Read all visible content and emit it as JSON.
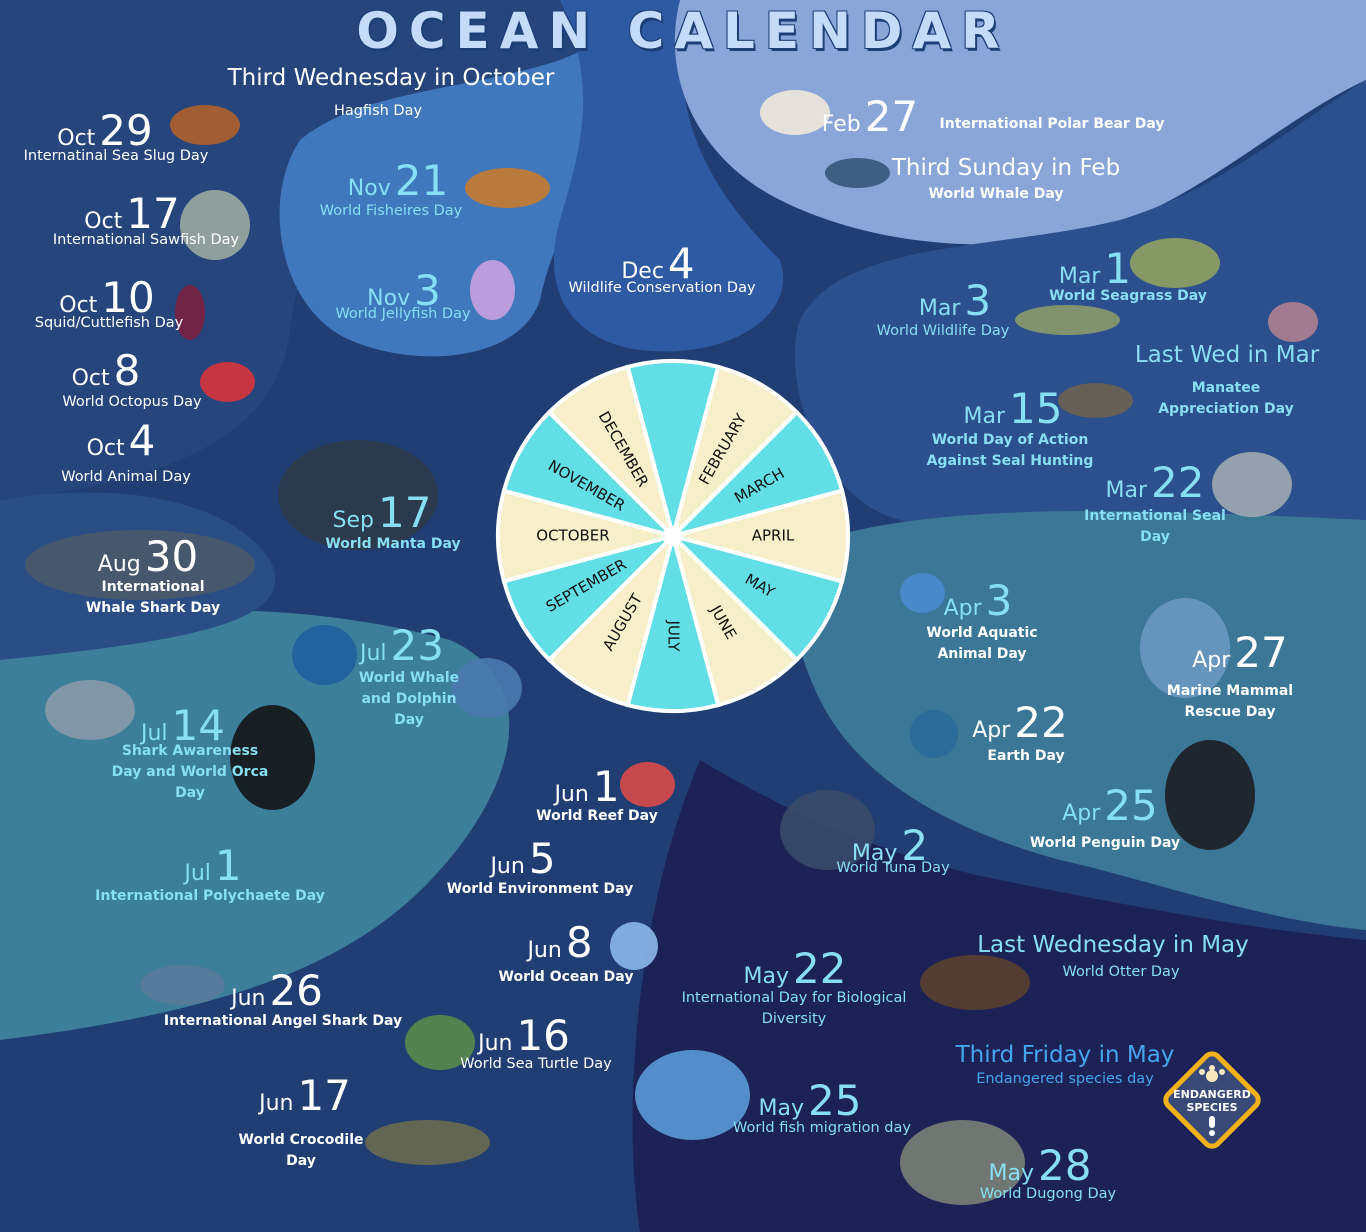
{
  "title": "OCEAN CALENDAR",
  "wheel": {
    "months": [
      "",
      "FEBRUARY",
      "MARCH",
      "APRIL",
      "MAY",
      "JUNE",
      "JULY",
      "AUGUST",
      "SEPTEMBER",
      "OCTOBER",
      "NOVEMBER",
      "DECEMBER"
    ],
    "colors": {
      "cyan": "#62dfe6",
      "cream": "#f7efc9"
    }
  },
  "colors": {
    "white": "#ffffff",
    "cyan": "#86dff2",
    "blue": "#45a5ee",
    "background": "#1f3a6e"
  },
  "events": [
    {
      "when": "Third Wednesday in October",
      "desc": "Hagfish Day"
    },
    {
      "month": "Oct",
      "day": "29",
      "desc": "Internatinal Sea Slug Day"
    },
    {
      "month": "Oct",
      "day": "17",
      "desc": "International Sawfish Day"
    },
    {
      "month": "Oct",
      "day": "10",
      "desc": "Squid/Cuttlefish Day"
    },
    {
      "month": "Oct",
      "day": "8",
      "desc": "World Octopus Day"
    },
    {
      "month": "Oct",
      "day": "4",
      "desc": "World Animal Day"
    },
    {
      "month": "Nov",
      "day": "21",
      "desc": "World Fisheires Day"
    },
    {
      "month": "Nov",
      "day": "3",
      "desc": "World Jellyfish Day"
    },
    {
      "month": "Dec",
      "day": "4",
      "desc": "Wildlife Conservation Day"
    },
    {
      "month": "Feb",
      "day": "27",
      "desc": "International Polar Bear Day"
    },
    {
      "when": "Third Sunday in Feb",
      "desc": "World Whale Day"
    },
    {
      "month": "Mar",
      "day": "1",
      "desc": "World Seagrass Day"
    },
    {
      "month": "Mar",
      "day": "3",
      "desc": "World Wildlife Day"
    },
    {
      "when": "Last Wed in Mar",
      "desc": "Manatee Appreciation Day"
    },
    {
      "month": "Mar",
      "day": "15",
      "desc": "World Day of Action Against Seal Hunting"
    },
    {
      "month": "Mar",
      "day": "22",
      "desc": "International Seal Day"
    },
    {
      "month": "Sep",
      "day": "17",
      "desc": "World Manta Day"
    },
    {
      "month": "Aug",
      "day": "30",
      "desc": "International Whale Shark Day"
    },
    {
      "month": "Jul",
      "day": "23",
      "desc": "World Whale and Dolphin Day"
    },
    {
      "month": "Jul",
      "day": "14",
      "desc": "Shark Awareness Day and World Orca Day"
    },
    {
      "month": "Jul",
      "day": "1",
      "desc": "International Polychaete Day"
    },
    {
      "month": "Apr",
      "day": "3",
      "desc": "World Aquatic Animal Day"
    },
    {
      "month": "Apr",
      "day": "27",
      "desc": "Marine Mammal Rescue Day"
    },
    {
      "month": "Apr",
      "day": "22",
      "desc": "Earth Day"
    },
    {
      "month": "Apr",
      "day": "25",
      "desc": "World Penguin Day"
    },
    {
      "month": "Jun",
      "day": "1",
      "desc": "World Reef Day"
    },
    {
      "month": "Jun",
      "day": "5",
      "desc": "World Environment Day"
    },
    {
      "month": "Jun",
      "day": "8",
      "desc": "World Ocean Day"
    },
    {
      "month": "May",
      "day": "2",
      "desc": "World Tuna Day"
    },
    {
      "month": "Jun",
      "day": "26",
      "desc": "International Angel Shark Day"
    },
    {
      "month": "Jun",
      "day": "16",
      "desc": "World Sea Turtle Day"
    },
    {
      "month": "Jun",
      "day": "17",
      "desc": "World Crocodile Day"
    },
    {
      "month": "May",
      "day": "22",
      "desc": "International Day for Biological Diversity"
    },
    {
      "when": "Last Wednesday in May",
      "desc": "World Otter Day"
    },
    {
      "when": "Third Friday in May",
      "desc": "Endangered species day"
    },
    {
      "month": "May",
      "day": "25",
      "desc": "World fish migration day"
    },
    {
      "month": "May",
      "day": "28",
      "desc": "World Dugong Day"
    }
  ],
  "badge": {
    "line1": "ENDANGERD",
    "line2": "SPECIES",
    "colors": {
      "border": "#f2b21c",
      "fill": "#3a4a78"
    }
  }
}
